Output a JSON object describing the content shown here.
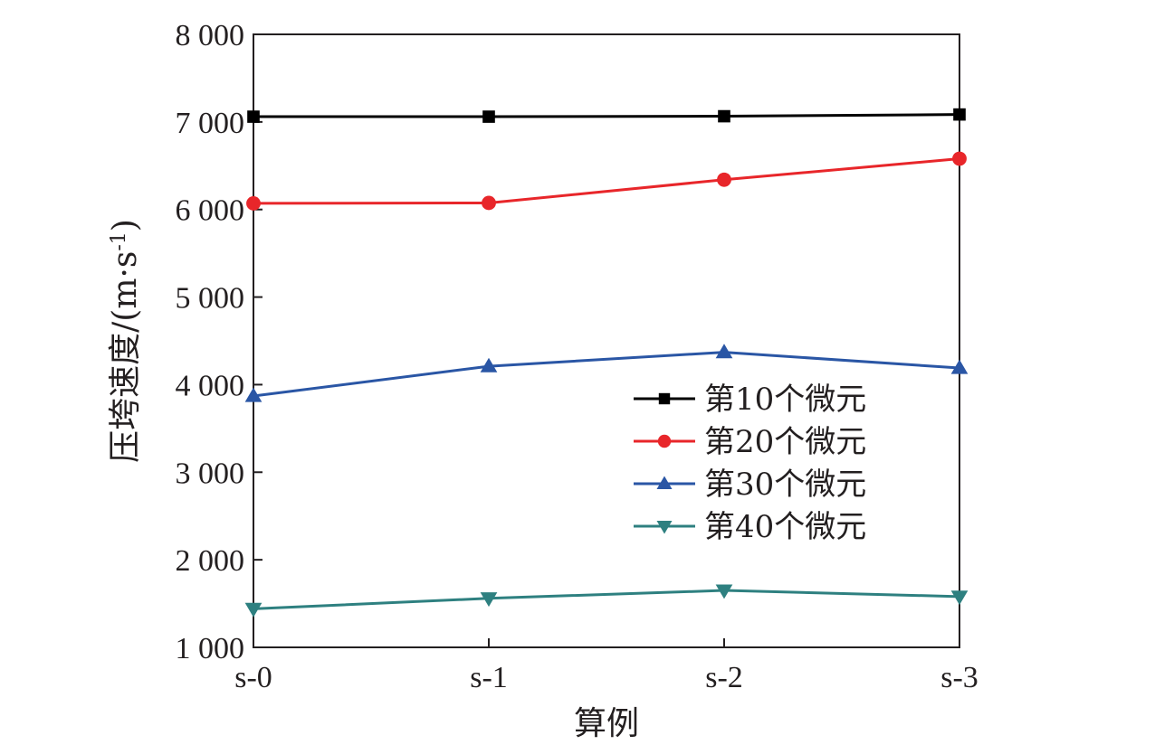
{
  "chart_data": {
    "type": "line",
    "categories": [
      "s-0",
      "s-1",
      "s-2",
      "s-3"
    ],
    "xlabel": "算例",
    "ylabel": "压垮速度/(m·s",
    "ylabel_sup": "-1",
    "ylabel_close": ")",
    "ylim": [
      1000,
      8000
    ],
    "yticks": [
      1000,
      2000,
      3000,
      4000,
      5000,
      6000,
      7000,
      8000
    ],
    "ytick_labels": [
      "1 000",
      "2 000",
      "3 000",
      "4 000",
      "5 000",
      "6 000",
      "7 000",
      "8 000"
    ],
    "grid": false,
    "legend_position": "right",
    "series": [
      {
        "name": "第10个微元",
        "marker": "square",
        "color": "#000000",
        "values": [
          7060,
          7060,
          7065,
          7085
        ]
      },
      {
        "name": "第20个微元",
        "marker": "circle",
        "color": "#e8262a",
        "values": [
          6070,
          6075,
          6340,
          6580
        ]
      },
      {
        "name": "第30个微元",
        "marker": "triangle-up",
        "color": "#2a56a5",
        "values": [
          3870,
          4210,
          4370,
          4190
        ]
      },
      {
        "name": "第40个微元",
        "marker": "triangle-down",
        "color": "#2e8080",
        "values": [
          1440,
          1560,
          1650,
          1580
        ]
      }
    ]
  }
}
